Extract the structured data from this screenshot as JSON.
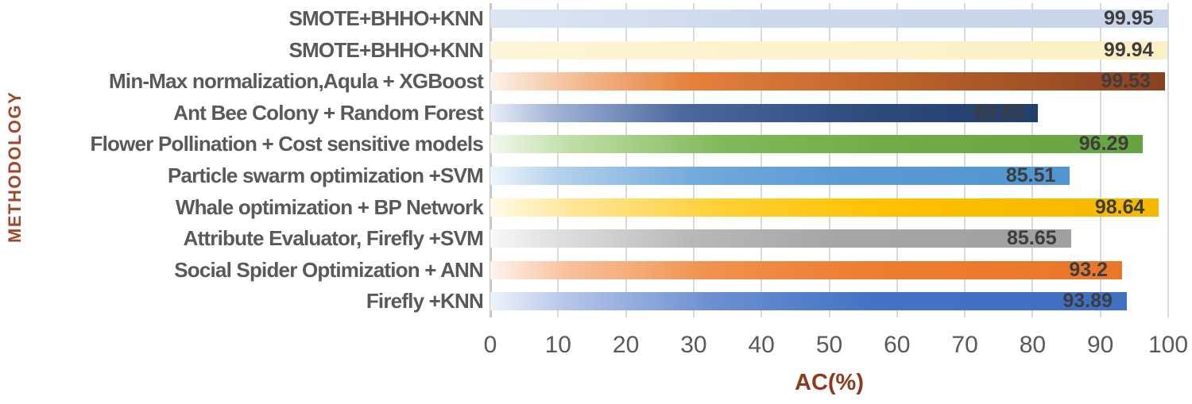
{
  "chart_data": {
    "type": "bar",
    "orientation": "horizontal",
    "title": "",
    "xlabel": "AC(%)",
    "ylabel": "METHODOLOGY",
    "xlim": [
      0,
      100
    ],
    "x_ticks": [
      "0",
      "10",
      "20",
      "30",
      "40",
      "50",
      "60",
      "70",
      "80",
      "90",
      "100"
    ],
    "grid": true,
    "legend": false,
    "categories": [
      "SMOTE+BHHO+KNN",
      "SMOTE+BHHO+KNN",
      "Min-Max normalization,Aqula + XGBoost",
      "Ant Bee Colony + Random Forest",
      "Flower Pollination + Cost sensitive models",
      "Particle swarm optimization +SVM",
      "Whale optimization + BP Network",
      "Attribute Evaluator, Firefly +SVM",
      "Social Spider Optimization + ANN",
      "Firefly +KNN"
    ],
    "values": [
      99.95,
      99.94,
      99.53,
      80.83,
      96.29,
      85.51,
      98.64,
      85.65,
      93.2,
      93.89
    ],
    "value_labels": [
      "99.95",
      "99.94",
      "99.53",
      "80.83",
      "96.29",
      "85.51",
      "98.64",
      "85.65",
      "93.2",
      "93.89"
    ],
    "bar_gradients": [
      [
        "#dde5f3 0%",
        "#cdd8ec 40%",
        "#c9d4ea 100%"
      ],
      [
        "#fef6da 0%",
        "#fdf2cc 40%",
        "#fbefc5 100%"
      ],
      [
        "#fcf2ea 0%",
        "#f2b385 15%",
        "#e5803b 30%",
        "#b55f28 65%",
        "#8a4121 100%"
      ],
      [
        "#eaeef8 0%",
        "#9fb2d4 12%",
        "#4c699f 35%",
        "#2c4a7c 70%",
        "#223e6b 100%"
      ],
      [
        "#f3f8ee 0%",
        "#c0dfa8 12%",
        "#83b95c 35%",
        "#70ad47 60%",
        "#68a342 100%"
      ],
      [
        "#eef4fb 0%",
        "#b3d1ec 12%",
        "#74aadc 35%",
        "#5b9bd5 60%",
        "#5295d2 100%"
      ],
      [
        "#fffbe9 0%",
        "#ffe699 12%",
        "#ffcf33 35%",
        "#ffc000 60%",
        "#f5b800 100%"
      ],
      [
        "#f8f8f8 0%",
        "#dedede 12%",
        "#b8b8b8 35%",
        "#a6a6a6 60%",
        "#a0a0a0 100%"
      ],
      [
        "#fdf4ed 0%",
        "#f8c29d 12%",
        "#f0914d 35%",
        "#ed7d31 60%",
        "#e9772a 100%"
      ],
      [
        "#eff3fb 0%",
        "#b4c5e8 12%",
        "#6c8fd1 35%",
        "#4472c4 60%",
        "#4070c2 100%"
      ]
    ]
  },
  "colors": {
    "gridline": "#d9d9d9",
    "axis_line": "#c6c6c6",
    "tick_label": "#595959",
    "category_label": "#595959",
    "value_label": "#3d3d3d",
    "x_axis_title": "#8e3a1e",
    "y_axis_title": "#a0492a",
    "background": "#ffffff"
  }
}
